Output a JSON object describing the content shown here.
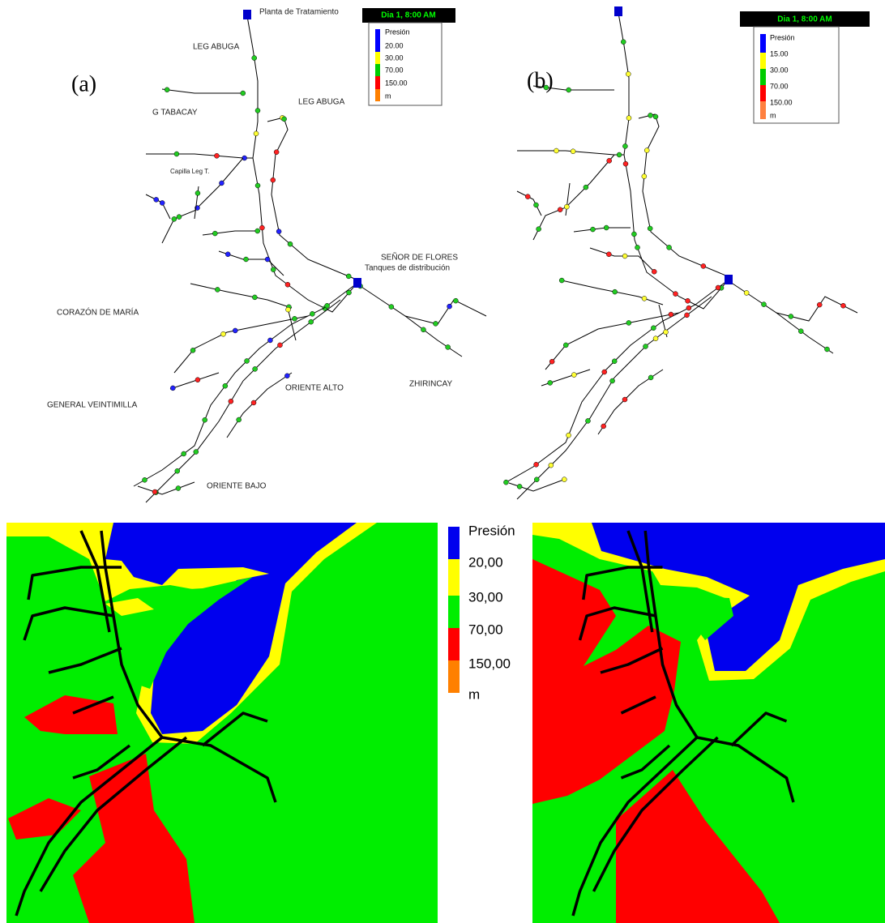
{
  "panel_a": {
    "label": "(a)",
    "time": "Dia 1, 8:00 AM",
    "legend": {
      "title": "Presión",
      "items": [
        "20.00",
        "30.00",
        "70.00",
        "150.00"
      ],
      "unit": "m"
    },
    "places": [
      "Planta de Tratamiento",
      "LEG ABUGA",
      "LEG ABUGA",
      "G TABACAY",
      "Capilla Leg T.",
      "SEÑOR DE FLORES",
      "Tanques de distribución",
      "CORAZÓN DE MARÍA",
      "ZHIRINCAY",
      "ORIENTE ALTO",
      "GENERAL VEINTIMILLA",
      "ORIENTE BAJO"
    ]
  },
  "panel_b": {
    "label": "(b)",
    "time": "Dia 1, 8:00 AM",
    "legend": {
      "title": "Presión",
      "items": [
        "15.00",
        "30.00",
        "70.00",
        "150.00"
      ],
      "unit": "m"
    }
  },
  "contour_legend": {
    "title": "Presión",
    "items": [
      "20,00",
      "30,00",
      "70,00",
      "150,00"
    ],
    "unit": "m"
  }
}
